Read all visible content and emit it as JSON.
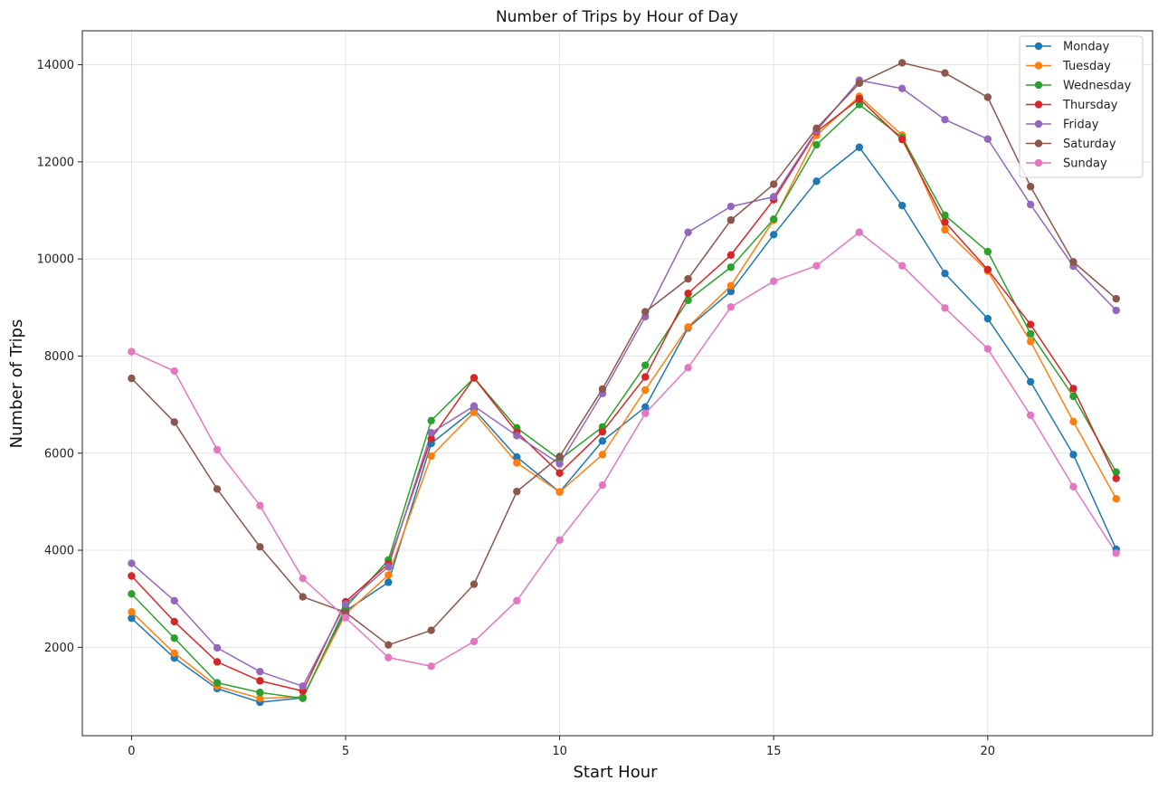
{
  "chart_data": {
    "type": "line",
    "title": "Number of Trips by Hour of Day",
    "xlabel": "Start Hour",
    "ylabel": "Number of Trips",
    "xlim": [
      -1.15,
      23.85
    ],
    "ylim": [
      180,
      14700
    ],
    "xticks": [
      0,
      5,
      10,
      15,
      20
    ],
    "yticks": [
      2000,
      4000,
      6000,
      8000,
      10000,
      12000,
      14000
    ],
    "grid": true,
    "legend_position": "top-right",
    "x": [
      0,
      1,
      2,
      3,
      4,
      5,
      6,
      7,
      8,
      9,
      10,
      11,
      12,
      13,
      14,
      15,
      16,
      17,
      18,
      19,
      20,
      21,
      22,
      23
    ],
    "series": [
      {
        "name": "Monday",
        "color": "#1f77b4",
        "values": [
          2600,
          1780,
          1150,
          870,
          960,
          2750,
          3340,
          6200,
          6900,
          5920,
          5200,
          6250,
          6950,
          8580,
          9330,
          10500,
          11600,
          12300,
          11100,
          9700,
          8770,
          7470,
          5970,
          4020
        ]
      },
      {
        "name": "Tuesday",
        "color": "#ff7f0e",
        "values": [
          2730,
          1880,
          1200,
          950,
          980,
          2690,
          3490,
          5940,
          6840,
          5800,
          5200,
          5970,
          7300,
          8600,
          9450,
          10800,
          12550,
          13350,
          12550,
          10600,
          9750,
          8300,
          6650,
          5060
        ]
      },
      {
        "name": "Wednesday",
        "color": "#2ca02c",
        "values": [
          3100,
          2190,
          1270,
          1070,
          950,
          2820,
          3800,
          6670,
          7550,
          6520,
          5870,
          6540,
          7810,
          9150,
          9830,
          10820,
          12350,
          13180,
          12500,
          10900,
          10150,
          8460,
          7170,
          5610
        ]
      },
      {
        "name": "Thursday",
        "color": "#d62728",
        "values": [
          3470,
          2530,
          1700,
          1310,
          1100,
          2940,
          3720,
          6300,
          7550,
          6430,
          5590,
          6440,
          7570,
          9290,
          10080,
          11220,
          12620,
          13300,
          12460,
          10760,
          9780,
          8650,
          7330,
          5480
        ]
      },
      {
        "name": "Friday",
        "color": "#9467bd",
        "values": [
          3730,
          2960,
          1990,
          1500,
          1200,
          2890,
          3660,
          6420,
          6970,
          6360,
          5780,
          7230,
          8810,
          10550,
          11080,
          11280,
          12640,
          13680,
          13510,
          12870,
          12470,
          11120,
          9850,
          8940
        ]
      },
      {
        "name": "Saturday",
        "color": "#8c564b",
        "values": [
          7540,
          6640,
          5260,
          4070,
          3040,
          2720,
          2050,
          2350,
          3300,
          5210,
          5930,
          7320,
          8910,
          9590,
          10800,
          11540,
          12690,
          13620,
          14040,
          13830,
          13330,
          11490,
          9940,
          9180
        ]
      },
      {
        "name": "Sunday",
        "color": "#e377c2",
        "values": [
          8090,
          7690,
          6070,
          4920,
          3420,
          2610,
          1790,
          1610,
          2120,
          2960,
          4210,
          5340,
          6820,
          7760,
          9010,
          9540,
          9860,
          10550,
          9860,
          8990,
          8150,
          6780,
          5310,
          3940
        ]
      }
    ]
  }
}
